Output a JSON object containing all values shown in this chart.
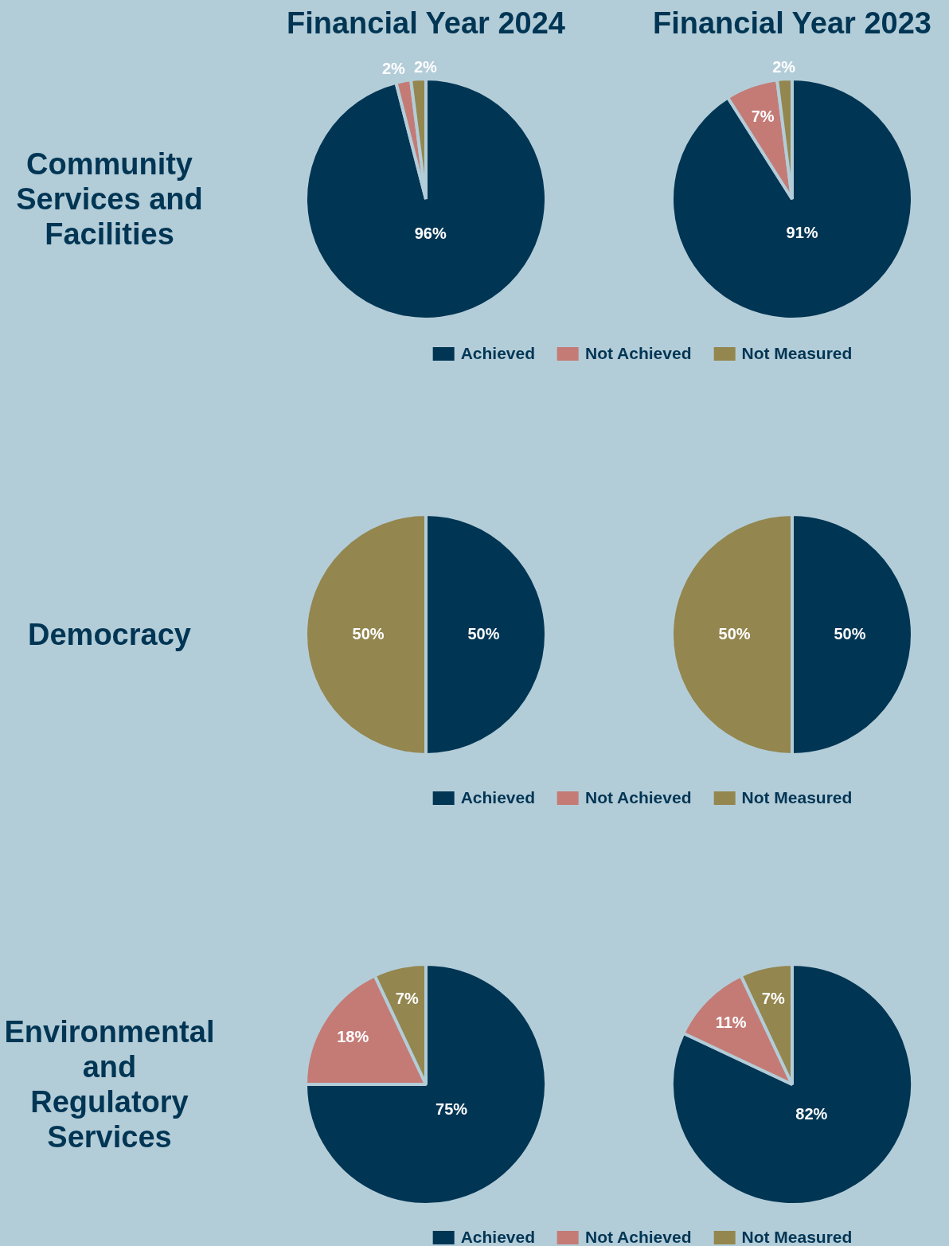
{
  "chart_data": [
    {
      "type": "pie",
      "title": "Financial Year 2024",
      "ylabel": "Community Services and Facilities",
      "categories": [
        null,
        null,
        null
      ],
      "values": [
        96,
        2,
        2
      ],
      "colors": [
        "#003554",
        "#c47b76",
        "#93864f"
      ],
      "value_labels": [
        "96%",
        "2%",
        "2%"
      ]
    },
    {
      "type": "pie",
      "title": "Financial Year 2023",
      "categories": [
        "Achieved",
        "Not Achieved",
        "Not Measured"
      ],
      "values": [
        91,
        7,
        2
      ],
      "colors": [
        "#003554",
        "#c47b76",
        "#93864f"
      ],
      "value_labels": [
        "91%",
        "7%",
        "2%"
      ],
      "legend": "bottom"
    },
    {
      "type": "pie",
      "ylabel": "Democracy",
      "categories": [
        null,
        null,
        null
      ],
      "values": [
        50,
        0,
        50
      ],
      "colors": [
        "#003554",
        "#c47b76",
        "#93864f"
      ],
      "value_labels": [
        "50%",
        null,
        "50%"
      ]
    },
    {
      "type": "pie",
      "categories": [
        "Achieved",
        "Not Achieved",
        "Not Measured"
      ],
      "values": [
        50,
        0,
        50
      ],
      "colors": [
        "#003554",
        "#c47b76",
        "#93864f"
      ],
      "value_labels": [
        "50%",
        null,
        "50%"
      ],
      "legend": "bottom"
    },
    {
      "type": "pie",
      "ylabel": "Environmental and Regulatory Services",
      "categories": [
        null,
        null,
        null
      ],
      "values": [
        75,
        18,
        7
      ],
      "colors": [
        "#003554",
        "#c47b76",
        "#93864f"
      ],
      "value_labels": [
        "75%",
        "18%",
        "7%"
      ]
    },
    {
      "type": "pie",
      "categories": [
        "Achieved",
        "Not Achieved",
        "Not Measured"
      ],
      "values": [
        82,
        11,
        7
      ],
      "colors": [
        "#003554",
        "#c47b76",
        "#93864f"
      ],
      "value_labels": [
        "82%",
        "11%",
        "7%"
      ],
      "legend": "bottom"
    }
  ]
}
